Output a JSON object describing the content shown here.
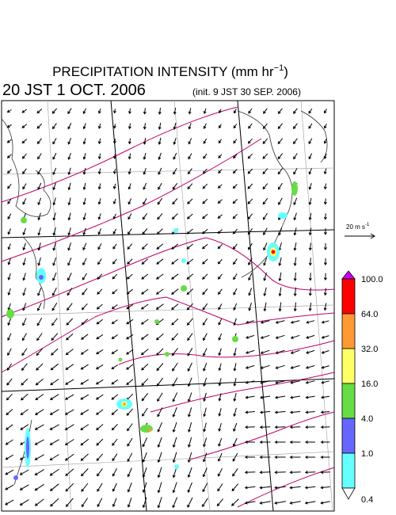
{
  "header": {
    "title": "PRECIPITATION INTENSITY (mm hr",
    "title_sup": "−1",
    "title_end": ")",
    "valid_time": "20 JST 1 OCT. 2006",
    "init_time": "(init. 9 JST 30 SEP. 2006)"
  },
  "vector_legend": {
    "label": "20 m s",
    "sup": "-1"
  },
  "colorbar": {
    "labels": [
      "100.0",
      "64.0",
      "32.0",
      "16.0",
      "4.0",
      "1.0",
      "0.4"
    ],
    "colors": [
      "#ff0000",
      "#ff9933",
      "#ffff66",
      "#66dd44",
      "#6666ff",
      "#66ffff"
    ],
    "over_color": "#cc00ff",
    "under_color": "#ffffff"
  }
}
